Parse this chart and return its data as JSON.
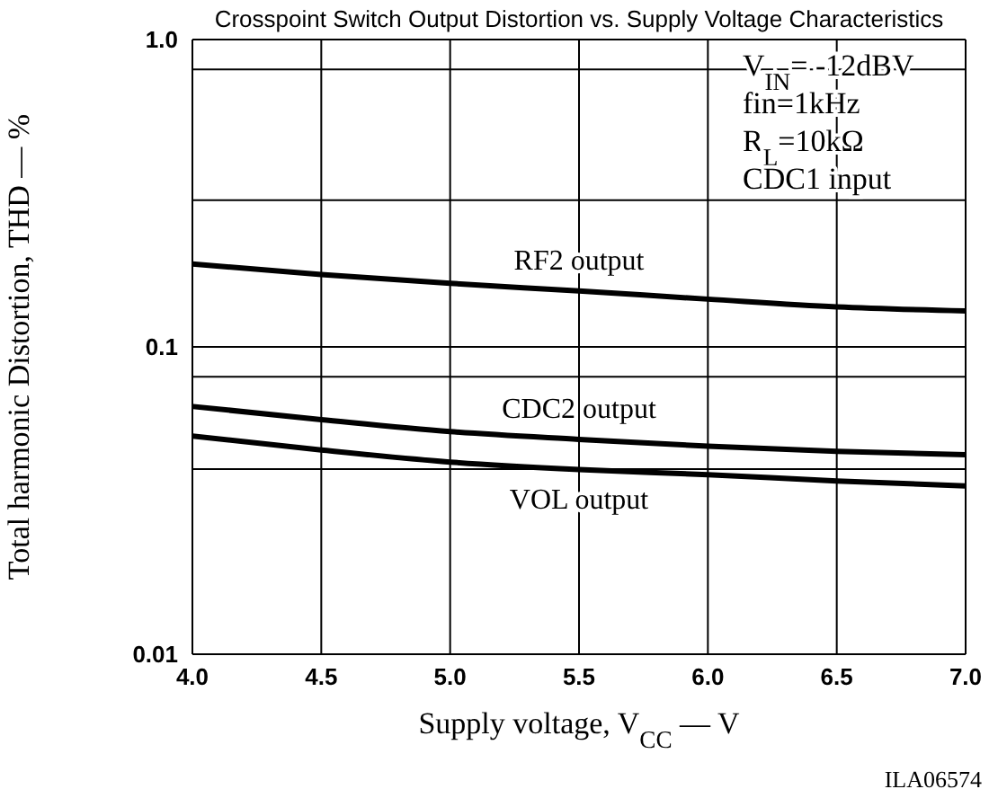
{
  "chart_data": {
    "type": "line",
    "title": "Crosspoint Switch Output Distortion vs. Supply Voltage Characteristics",
    "xlabel": "Supply voltage, V$_{CC}$ — V",
    "ylabel": "Total harmonic Distortion, THD — %",
    "x": [
      4.0,
      4.5,
      5.0,
      5.5,
      6.0,
      6.5,
      7.0
    ],
    "series": [
      {
        "name": "RF2 output",
        "color": "#000000",
        "values": [
          0.186,
          0.172,
          0.161,
          0.152,
          0.143,
          0.135,
          0.131
        ]
      },
      {
        "name": "CDC2 output",
        "color": "#000000",
        "values": [
          0.064,
          0.058,
          0.053,
          0.05,
          0.0475,
          0.0457,
          0.0446
        ]
      },
      {
        "name": "VOL output",
        "color": "#000000",
        "values": [
          0.0513,
          0.0462,
          0.0422,
          0.0399,
          0.0384,
          0.0366,
          0.0353
        ]
      }
    ],
    "xlim": [
      4,
      7
    ],
    "xticks": [
      {
        "value": 4,
        "label": "4.0"
      },
      4.5,
      {
        "value": 5,
        "label": "5.0"
      },
      5.5,
      {
        "value": 6,
        "label": "6.0"
      },
      6.5,
      {
        "value": 7,
        "label": "7.0"
      }
    ],
    "ylim": [
      0.01,
      1
    ],
    "yticks": [
      0.01,
      {
        "value": 0.04,
        "label": null
      },
      {
        "value": 0.08,
        "label": null
      },
      0.1,
      {
        "value": 0.3,
        "label": null
      },
      {
        "value": 0.8,
        "label": null
      },
      {
        "value": 1,
        "label": "1.0"
      }
    ],
    "log": "y",
    "grid": true,
    "legend": false,
    "marker": "none",
    "line_style": "solid",
    "annotations": [
      "V$_{IN}$= -12dBV",
      "fin=1kHz",
      "R$_{L}$=10kΩ",
      "CDC1 input",
      "ILA06574"
    ]
  }
}
